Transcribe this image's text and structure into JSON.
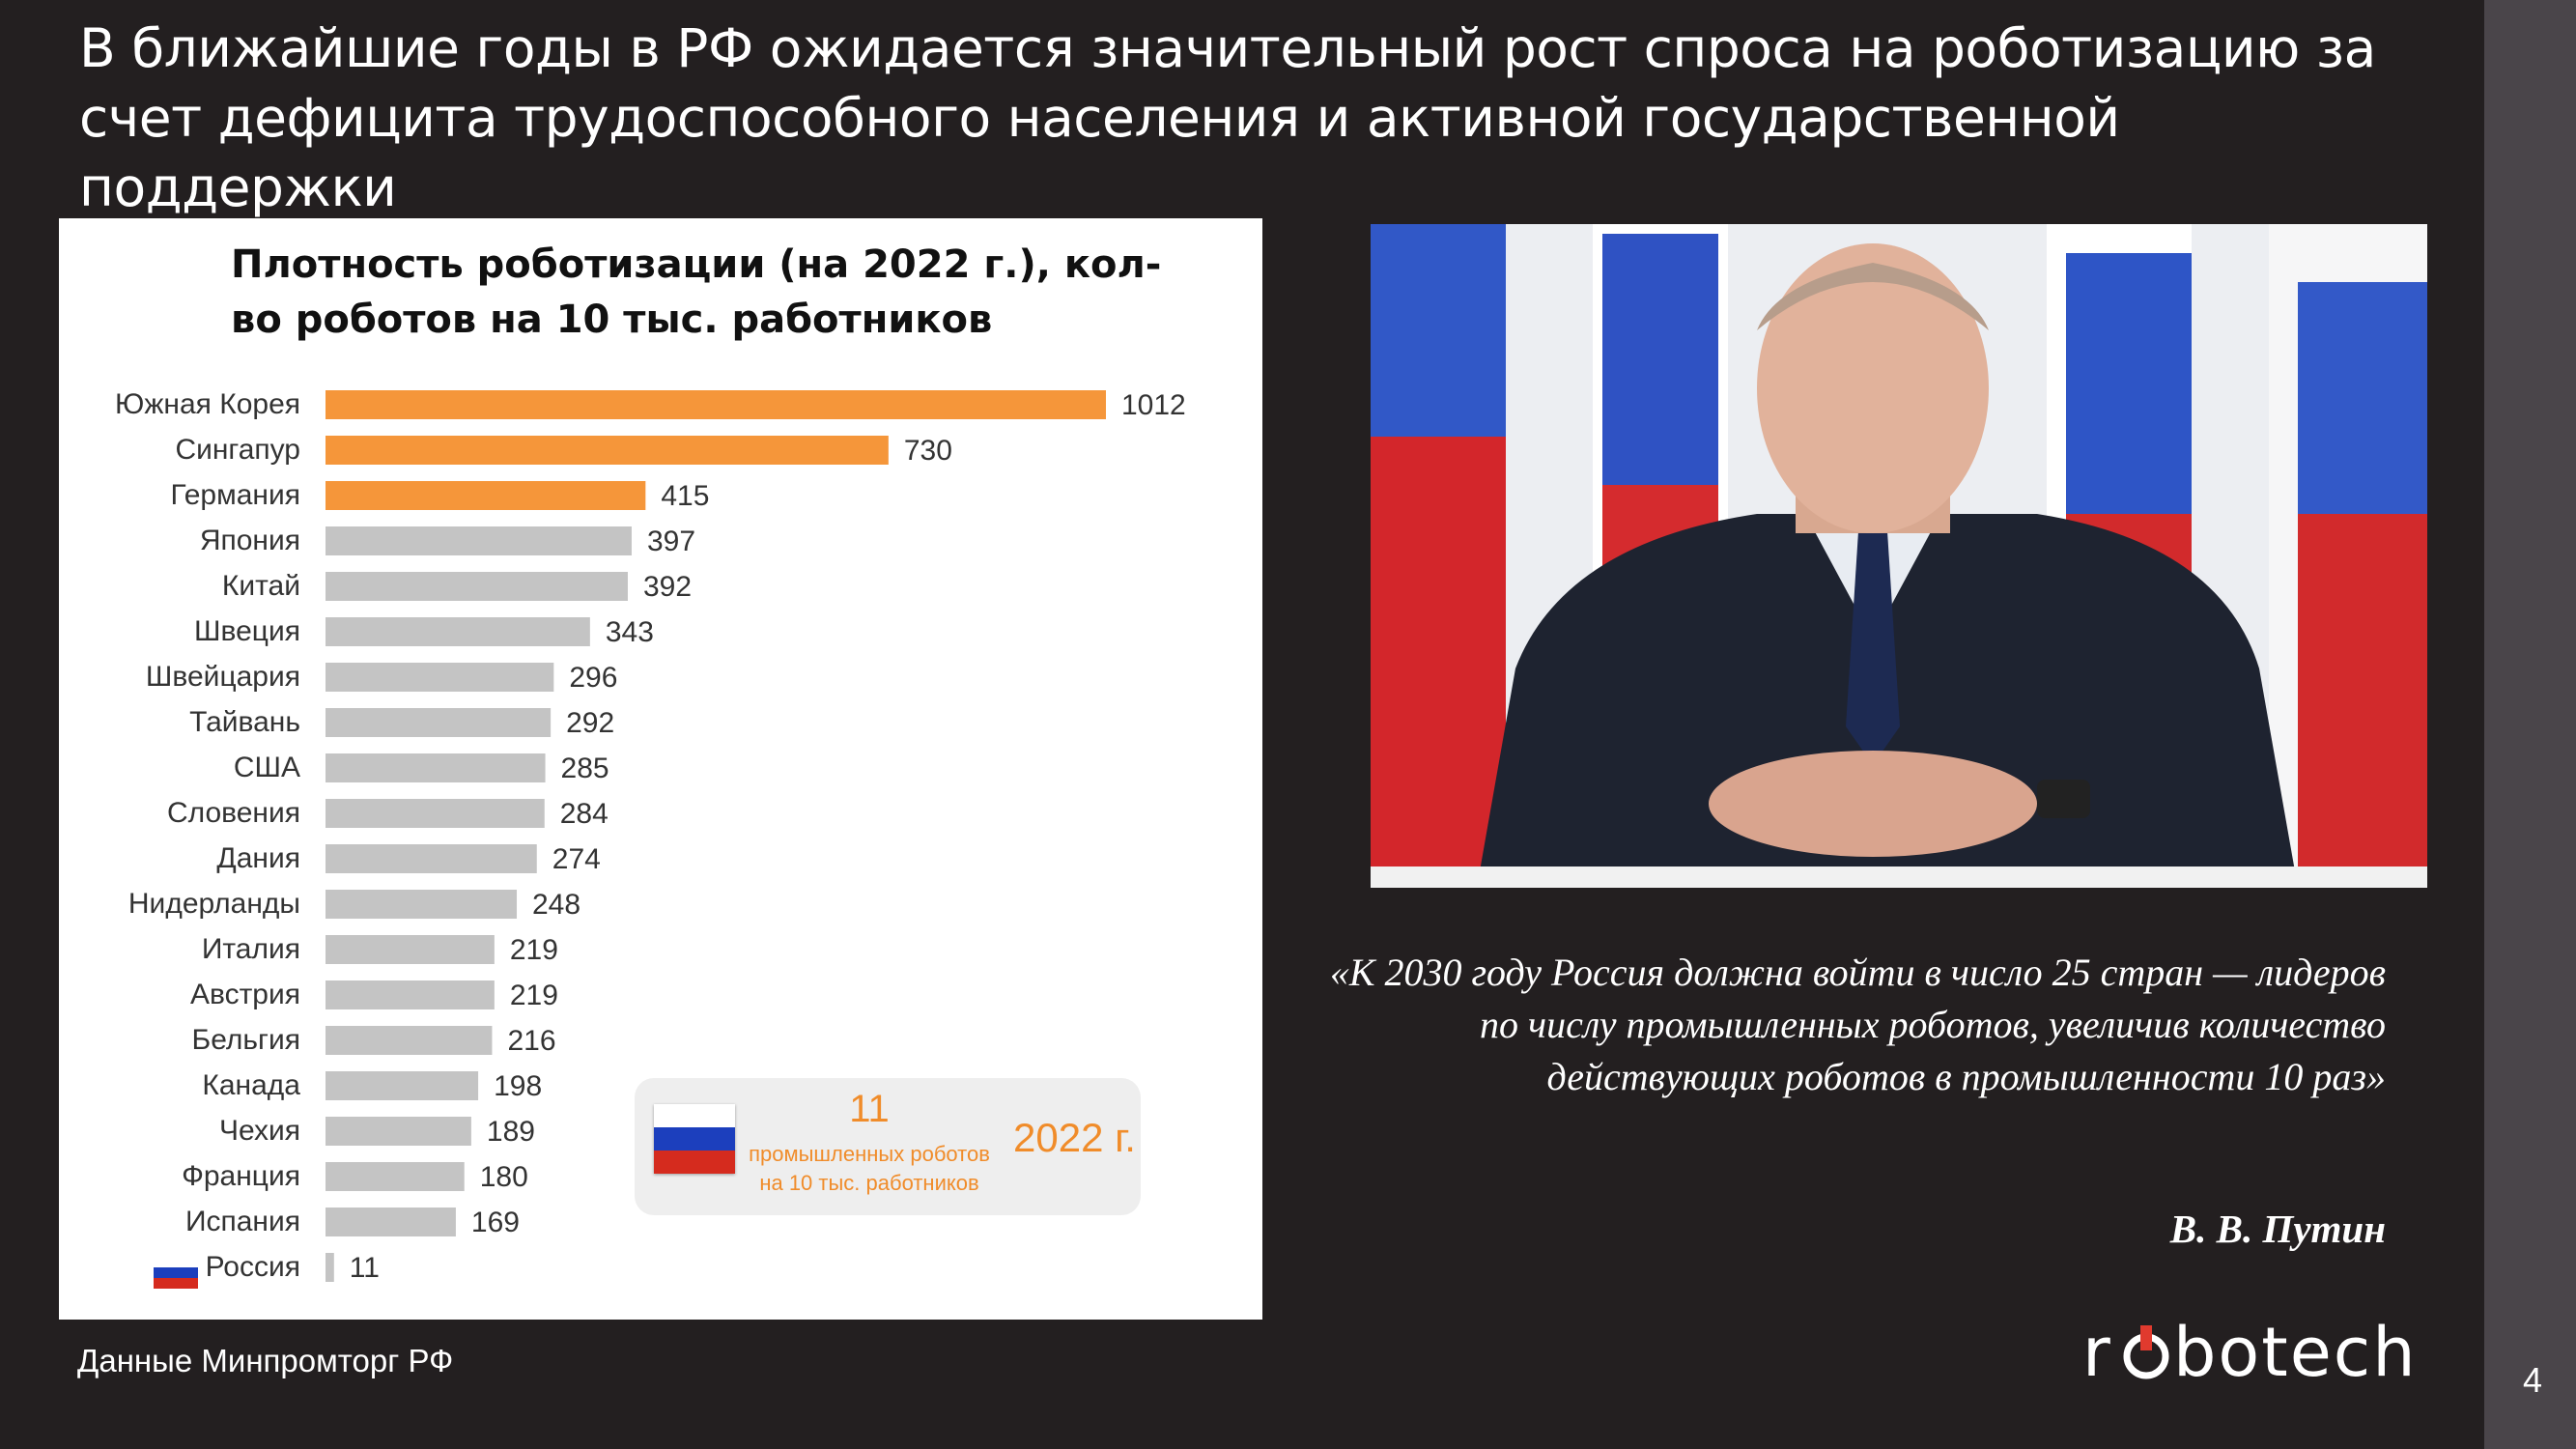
{
  "slide": {
    "title": "В ближайшие годы в РФ ожидается значительный рост спроса на роботизацию за счет дефицита трудоспособного населения и активной государственной поддержки",
    "source": "Данные Минпромторг РФ",
    "page_number": "4",
    "logo_text": "robotech",
    "quote": "«К 2030 году Россия должна войти в число 25 стран — лидеров по числу промышленных роботов, увеличив количество действующих роботов в промышленности 10 раз»",
    "quote_author": "В. В. Путин"
  },
  "inset": {
    "value": "11",
    "caption": "промышленных роботов на 10 тыс. работников",
    "year": "2022 г."
  },
  "colors": {
    "highlight": "#f5963a",
    "bar": "#c4c4c4",
    "background": "#231f20",
    "flag_white": "#ffffff",
    "flag_blue": "#1c3fbd",
    "flag_red": "#d52b1e"
  },
  "chart_data": {
    "type": "bar",
    "orientation": "horizontal",
    "title": "Плотность роботизации (на 2022 г.), кол-во роботов на 10 тыс. работников",
    "categories": [
      "Южная Корея",
      "Сингапур",
      "Германия",
      "Япония",
      "Китай",
      "Швеция",
      "Швейцария",
      "Тайвань",
      "США",
      "Словения",
      "Дания",
      "Нидерланды",
      "Италия",
      "Австрия",
      "Бельгия",
      "Канада",
      "Чехия",
      "Франция",
      "Испания",
      "Россия"
    ],
    "values": [
      1012,
      730,
      415,
      397,
      392,
      343,
      296,
      292,
      285,
      284,
      274,
      248,
      219,
      219,
      216,
      198,
      189,
      180,
      169,
      11
    ],
    "highlighted": [
      "Южная Корея",
      "Сингапур",
      "Германия"
    ],
    "xlim": [
      0,
      1012
    ],
    "grid": false,
    "legend": "none"
  }
}
